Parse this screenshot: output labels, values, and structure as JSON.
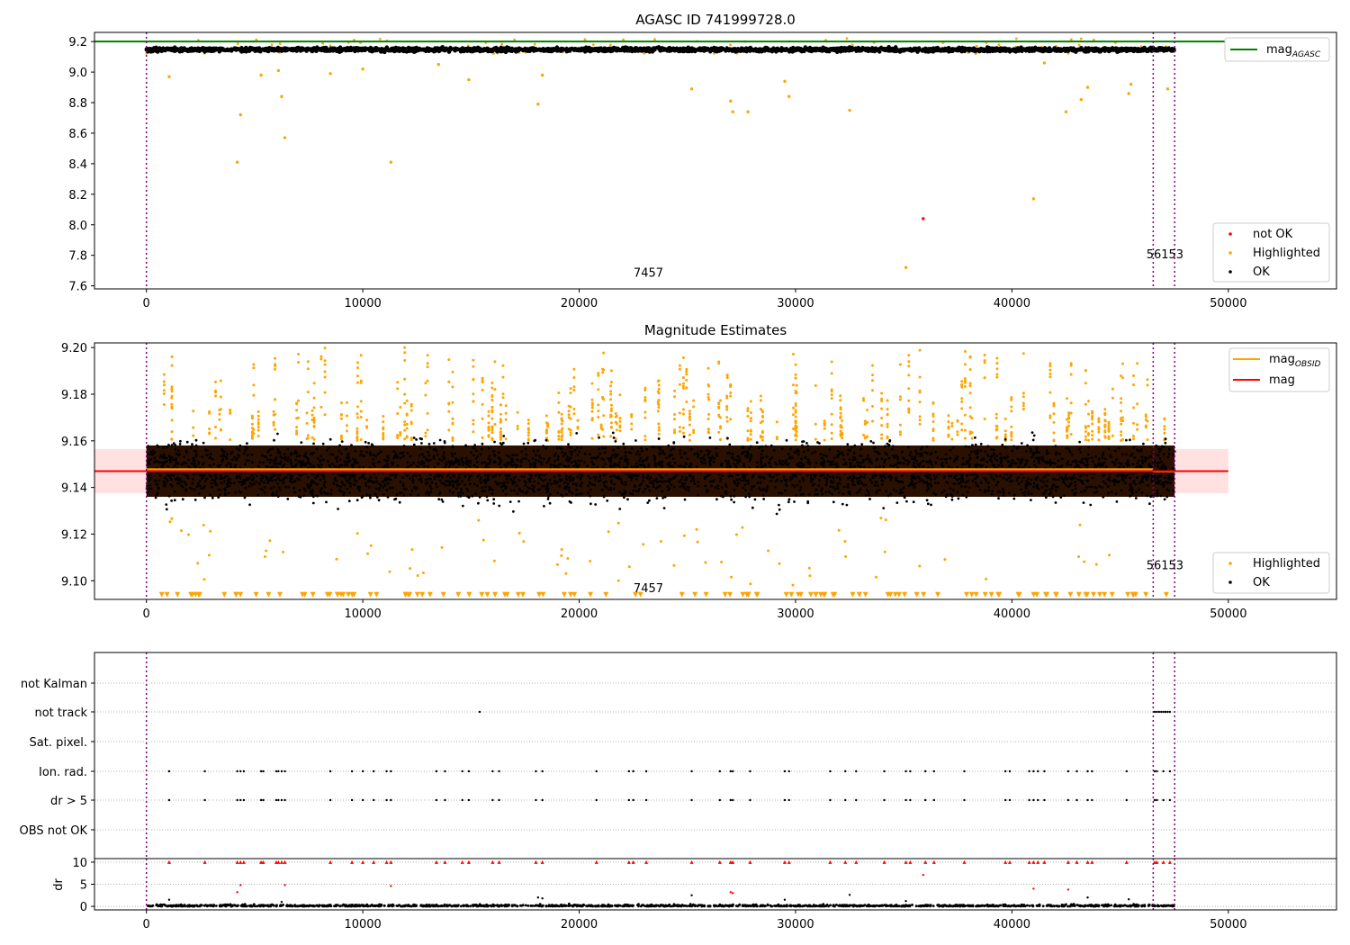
{
  "chart_data": [
    {
      "type": "scatter",
      "title": "AGASC ID 741999728.0",
      "xlim": [
        -2400,
        55000
      ],
      "ylim": [
        7.58,
        9.26
      ],
      "x_ticks": [
        0,
        10000,
        20000,
        30000,
        40000,
        50000
      ],
      "y_ticks": [
        7.6,
        7.8,
        8.0,
        8.2,
        8.4,
        8.6,
        8.8,
        9.0,
        9.2
      ],
      "vlines": [
        0,
        46530,
        47520
      ],
      "hline": {
        "label": "mag",
        "label_sub": "AGASC",
        "y": 9.2,
        "x_range": [
          -2400,
          50000
        ],
        "color": "#008000"
      },
      "ok_band": {
        "name": "OK",
        "x_range": [
          0,
          47520
        ],
        "y_center": 9.147,
        "y_spread": 0.012,
        "color": "#000000"
      },
      "series": [
        {
          "name": "not OK",
          "color": "#ff0000",
          "points": [
            [
              35900,
              8.04
            ]
          ]
        },
        {
          "name": "Highlighted",
          "color": "#ffa500",
          "points": [
            [
              1050,
              8.97
            ],
            [
              4200,
              8.41
            ],
            [
              4350,
              8.72
            ],
            [
              5300,
              8.98
            ],
            [
              6100,
              9.01
            ],
            [
              6250,
              8.84
            ],
            [
              6400,
              8.57
            ],
            [
              8500,
              8.99
            ],
            [
              10000,
              9.02
            ],
            [
              11300,
              8.41
            ],
            [
              13500,
              9.05
            ],
            [
              14900,
              8.95
            ],
            [
              18100,
              8.79
            ],
            [
              18300,
              8.98
            ],
            [
              25200,
              8.89
            ],
            [
              27000,
              8.81
            ],
            [
              27100,
              8.74
            ],
            [
              27800,
              8.74
            ],
            [
              29500,
              8.94
            ],
            [
              29700,
              8.84
            ],
            [
              32500,
              8.75
            ],
            [
              35100,
              7.72
            ],
            [
              41000,
              8.17
            ],
            [
              41500,
              9.06
            ],
            [
              42500,
              8.74
            ],
            [
              43200,
              8.82
            ],
            [
              43500,
              8.9
            ],
            [
              45400,
              8.86
            ],
            [
              45500,
              8.92
            ],
            [
              47200,
              8.89
            ]
          ]
        }
      ],
      "annotations": [
        {
          "text": "7457",
          "x": 23200,
          "y": 7.66
        },
        {
          "text": "56153",
          "x": 47600,
          "y": 7.78
        }
      ],
      "legends": [
        {
          "placement": "upper-right",
          "entries": [
            "mag_AGASC"
          ]
        },
        {
          "placement": "lower-right",
          "entries": [
            "not OK",
            "Highlighted",
            "OK"
          ]
        }
      ]
    },
    {
      "type": "scatter",
      "title": "Magnitude Estimates",
      "xlim": [
        -2400,
        55000
      ],
      "ylim": [
        9.092,
        9.202
      ],
      "x_ticks": [
        0,
        10000,
        20000,
        30000,
        40000,
        50000
      ],
      "y_ticks": [
        9.1,
        9.12,
        9.14,
        9.16,
        9.18,
        9.2
      ],
      "vlines": [
        0,
        46530,
        47520
      ],
      "lines": [
        {
          "name": "mag",
          "name_sub": "OBSID",
          "color": "#ffa500",
          "segments": [
            [
              0,
              46530,
              9.1478
            ],
            [
              46530,
              47520,
              9.1468
            ]
          ]
        },
        {
          "name": "mag",
          "color": "#ff0000",
          "segments": [
            [
              -2400,
              50000,
              9.147
            ]
          ]
        }
      ],
      "band": {
        "x_range": [
          -2400,
          50000
        ],
        "y_range": [
          9.1375,
          9.1565
        ],
        "color": "#ffc8c8"
      },
      "ok_band": {
        "name": "OK",
        "x_range": [
          0,
          47520
        ],
        "y_center": 9.147,
        "y_spread": 0.012,
        "color": "#000000"
      },
      "highlighted": {
        "name": "Highlighted",
        "color": "#ffa500",
        "y_range": [
          9.16,
          9.2
        ],
        "lower_y_range": [
          9.095,
          9.135
        ],
        "marker_y": 9.094
      },
      "annotations": [
        {
          "text": "7457",
          "x": 23200,
          "y": 9.095
        },
        {
          "text": "56153",
          "x": 47600,
          "y": 9.105
        }
      ],
      "legends": [
        {
          "placement": "upper-right",
          "entries": [
            "mag_OBSID",
            "mag"
          ]
        },
        {
          "placement": "lower-right",
          "entries": [
            "Highlighted",
            "OK"
          ]
        }
      ]
    },
    {
      "type": "scatter",
      "title": "",
      "xlim": [
        -2400,
        55000
      ],
      "x_ticks": [
        0,
        10000,
        20000,
        30000,
        40000,
        50000
      ],
      "vlines": [
        0,
        46530,
        47520
      ],
      "categories": [
        "not Kalman",
        "not track",
        "Sat. pixel.",
        "Ion. rad.",
        "dr > 5",
        "OBS not OK"
      ],
      "flag_points": {
        "not track": [
          15400,
          46600,
          46700,
          46800,
          46900,
          47000,
          47100,
          47200,
          47300
        ],
        "Ion. rad.": [
          1050,
          2700,
          4200,
          4350,
          4500,
          5300,
          5400,
          6000,
          6100,
          6250,
          6400,
          8500,
          9500,
          10000,
          10500,
          11100,
          11300,
          13400,
          13800,
          14600,
          14900,
          16000,
          16300,
          18000,
          18300,
          20800,
          22300,
          22500,
          23100,
          25200,
          26500,
          27000,
          27100,
          27900,
          29500,
          29700,
          31600,
          32300,
          32800,
          34100,
          35100,
          35300,
          36000,
          36400,
          37800,
          39700,
          39900,
          40800,
          41000,
          41200,
          41500,
          42600,
          43000,
          43500,
          43700,
          45300,
          46600,
          46700,
          47000,
          47300
        ],
        "dr > 5": [
          1050,
          2700,
          4200,
          4350,
          4500,
          5300,
          5400,
          6000,
          6100,
          6250,
          6400,
          8500,
          9500,
          10000,
          10500,
          11100,
          11300,
          13400,
          13800,
          14600,
          14900,
          16000,
          16300,
          18000,
          18300,
          20800,
          22300,
          22500,
          23100,
          25200,
          26500,
          27000,
          27100,
          27900,
          29500,
          29700,
          31600,
          32300,
          32800,
          34100,
          35100,
          35300,
          36000,
          36400,
          37800,
          39700,
          39900,
          40800,
          41000,
          41200,
          41500,
          42600,
          43000,
          43500,
          43700,
          45300,
          46600,
          46700,
          47000,
          47300
        ]
      }
    },
    {
      "type": "scatter",
      "ylabel": "dr",
      "xlim": [
        -2400,
        55000
      ],
      "ylim": [
        -0.8,
        10.8
      ],
      "x_ticks": [
        0,
        10000,
        20000,
        30000,
        40000,
        50000
      ],
      "y_ticks": [
        0,
        5,
        10
      ],
      "vlines": [
        0,
        46530,
        47520
      ],
      "red_points": [
        [
          1050,
          10
        ],
        [
          2700,
          10
        ],
        [
          4200,
          10
        ],
        [
          4350,
          10
        ],
        [
          4500,
          10
        ],
        [
          5300,
          10
        ],
        [
          5400,
          10
        ],
        [
          6000,
          10
        ],
        [
          6100,
          10
        ],
        [
          6250,
          10
        ],
        [
          6400,
          10
        ],
        [
          8500,
          10
        ],
        [
          9500,
          10
        ],
        [
          10000,
          10
        ],
        [
          10500,
          10
        ],
        [
          11100,
          10
        ],
        [
          11300,
          10
        ],
        [
          13400,
          10
        ],
        [
          13800,
          10
        ],
        [
          14600,
          10
        ],
        [
          14900,
          10
        ],
        [
          16000,
          10
        ],
        [
          16300,
          10
        ],
        [
          18000,
          10
        ],
        [
          18300,
          10
        ],
        [
          20800,
          10
        ],
        [
          22300,
          10
        ],
        [
          22500,
          10
        ],
        [
          23100,
          10
        ],
        [
          25200,
          10
        ],
        [
          26500,
          10
        ],
        [
          27000,
          10
        ],
        [
          27100,
          10
        ],
        [
          27900,
          10
        ],
        [
          29500,
          10
        ],
        [
          29700,
          10
        ],
        [
          31600,
          10
        ],
        [
          32300,
          10
        ],
        [
          32800,
          10
        ],
        [
          34100,
          10
        ],
        [
          35100,
          10
        ],
        [
          35300,
          10
        ],
        [
          36000,
          10
        ],
        [
          36400,
          10
        ],
        [
          37800,
          10
        ],
        [
          39700,
          10
        ],
        [
          39900,
          10
        ],
        [
          40800,
          10
        ],
        [
          41000,
          10
        ],
        [
          41200,
          10
        ],
        [
          41500,
          10
        ],
        [
          42600,
          10
        ],
        [
          43000,
          10
        ],
        [
          43500,
          10
        ],
        [
          43700,
          10
        ],
        [
          45300,
          10
        ],
        [
          46600,
          10
        ],
        [
          46700,
          10
        ],
        [
          47000,
          10
        ],
        [
          47300,
          10
        ],
        [
          4200,
          3.2
        ],
        [
          4350,
          4.8
        ],
        [
          6400,
          4.8
        ],
        [
          11300,
          4.6
        ],
        [
          27000,
          3.2
        ],
        [
          27100,
          3.0
        ],
        [
          35900,
          7.1
        ],
        [
          41000,
          4.0
        ],
        [
          42600,
          3.8
        ]
      ],
      "black_points": [
        [
          1050,
          1.5
        ],
        [
          18100,
          2.0
        ],
        [
          18300,
          1.8
        ],
        [
          25200,
          2.5
        ],
        [
          29500,
          1.5
        ],
        [
          32500,
          2.6
        ],
        [
          43500,
          2.0
        ],
        [
          45400,
          1.6
        ],
        [
          6250,
          1.0
        ],
        [
          35100,
          1.2
        ]
      ]
    }
  ]
}
